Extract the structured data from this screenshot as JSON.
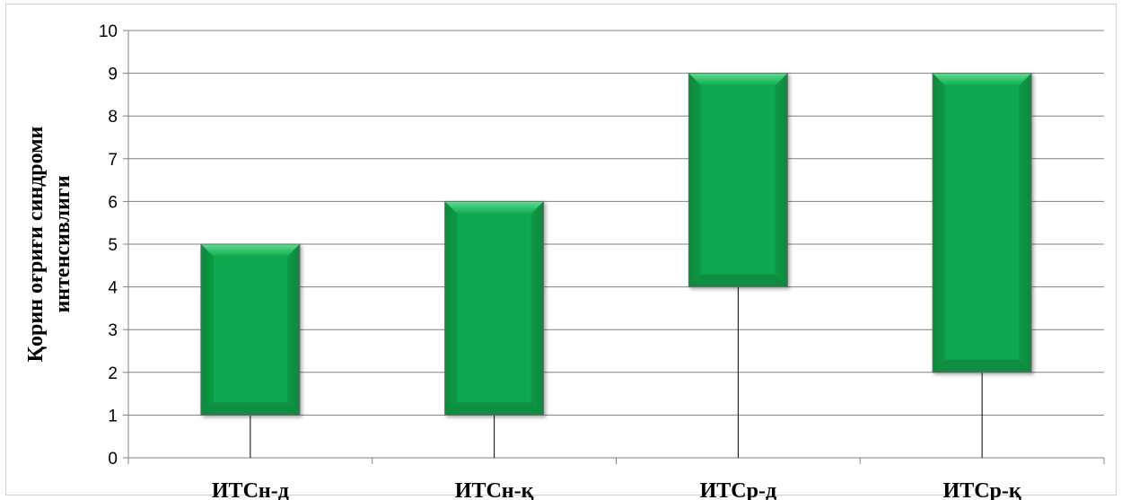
{
  "chart_data": {
    "type": "box",
    "categories": [
      "ИТСн-д",
      "ИТСн-қ",
      "ИТСр-д",
      "ИТСр-қ"
    ],
    "series": [
      {
        "low": [
          0,
          0,
          0,
          0
        ],
        "open": [
          1,
          1,
          4,
          2
        ],
        "close": [
          5,
          6,
          9,
          9
        ],
        "high": [
          5,
          6,
          9,
          9
        ]
      }
    ],
    "ylabel": [
      "Қорин оғриғи синдроми",
      "интенсивлиги"
    ],
    "ylim": [
      0,
      10
    ],
    "yticks": [
      "0",
      "1",
      "2",
      "3",
      "4",
      "5",
      "6",
      "7",
      "8",
      "9",
      "10"
    ],
    "grid": true,
    "colors": {
      "box": "#0fa84f",
      "box_light": "#3ed07a",
      "box_dark": "#078a3c",
      "grid": "#808080",
      "whisker": "#000000"
    }
  }
}
